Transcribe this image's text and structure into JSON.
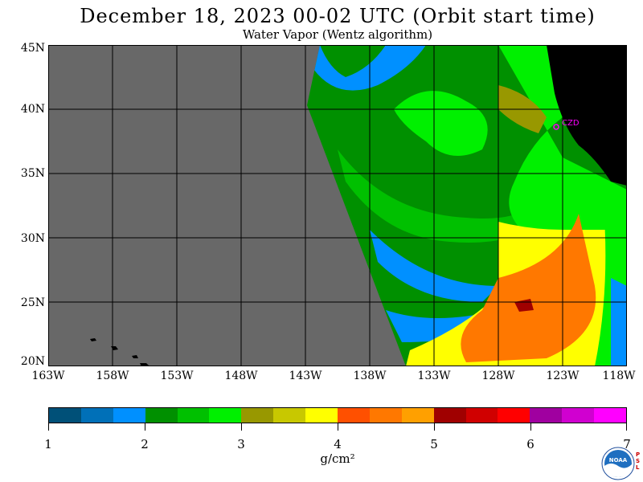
{
  "title": "December 18, 2023  00-02 UTC  (Orbit start time)",
  "subtitle": "Water Vapor (Wentz algorithm)",
  "map": {
    "lat_labels": [
      "45N",
      "40N",
      "35N",
      "30N",
      "25N",
      "20N"
    ],
    "lon_labels": [
      "163W",
      "158W",
      "153W",
      "148W",
      "143W",
      "138W",
      "133W",
      "128W",
      "123W",
      "118W"
    ],
    "station_label": "CZD",
    "colors": {
      "no_data": "#686868",
      "land": "#000000",
      "station": "#ff00ff"
    }
  },
  "colorbar": {
    "tick_labels": [
      "1",
      "2",
      "3",
      "4",
      "5",
      "6",
      "7"
    ],
    "units": "g/cm²",
    "colors": [
      "#005078",
      "#0070b8",
      "#0090ff",
      "#009000",
      "#00c000",
      "#00f000",
      "#989800",
      "#c8c800",
      "#ffff00",
      "#ff5000",
      "#ff7800",
      "#ffa000",
      "#a00000",
      "#d00000",
      "#ff0000",
      "#a000a0",
      "#d000d0",
      "#ff00ff"
    ]
  },
  "logo": {
    "text": "NOAA",
    "side_text": [
      "P",
      "S",
      "L"
    ]
  }
}
